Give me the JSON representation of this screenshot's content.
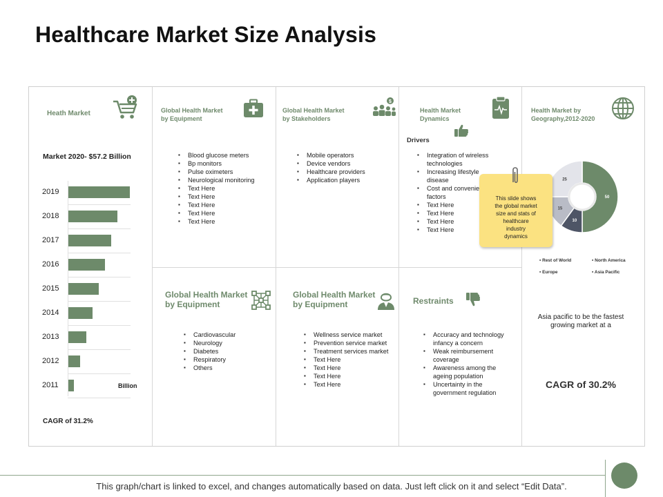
{
  "title": "Healthcare Market Size Analysis",
  "colors": {
    "accent": "#6d8a6a",
    "sticky": "#fbe281",
    "grid": "#d6d6d6"
  },
  "col1": {
    "heading": "Heath Market",
    "icon": "shopping-cart-plus-icon",
    "market_label": "Market 2020- $57.2 Billion",
    "unit_label": "Billion",
    "cagr": "CAGR of 31.2%"
  },
  "chart_data": {
    "type": "bar",
    "orientation": "horizontal",
    "title": "Market 2020- $57.2 Billion",
    "xlabel": "Billion",
    "categories": [
      "2019",
      "2018",
      "2017",
      "2016",
      "2015",
      "2014",
      "2013",
      "2012",
      "2011"
    ],
    "values": [
      10,
      8,
      7,
      6,
      5,
      4,
      3,
      2,
      1
    ],
    "xlim": [
      0,
      10
    ]
  },
  "top": {
    "c2": {
      "heading_l1": "Global Health Market",
      "heading_l2": "by Equipment",
      "icon": "first-aid-kit-icon",
      "items": [
        "Blood glucose meters",
        "Bp monitors",
        "Pulse oximeters",
        "Neurological monitoring",
        "Text Here",
        "Text Here",
        "Text Here",
        "Text Here",
        "Text Here"
      ]
    },
    "c3": {
      "heading_l1": "Global Health Market",
      "heading_l2": "by Stakeholders",
      "icon": "stakeholders-icon",
      "items": [
        "Mobile operators",
        "Device vendors",
        "Healthcare providers",
        "Application players"
      ]
    },
    "c4": {
      "heading_l1": "Health Market",
      "heading_l2": "Dynamics",
      "icon": "clipboard-pulse-icon",
      "drivers_label": "Drivers",
      "drivers_icon": "thumbs-up-icon",
      "items": [
        "Integration of wireless",
        "technologies",
        "Increasing lifestyle",
        "disease",
        "Cost and convenience",
        "factors",
        "Text Here",
        "Text Here",
        "Text Here",
        "Text Here"
      ]
    }
  },
  "bottom": {
    "c2": {
      "heading_l1": "Global  Health Market",
      "heading_l2": "by Equipment",
      "icon": "network-nodes-icon",
      "items": [
        "Cardiovascular",
        "Neurology",
        "Diabetes",
        "Respiratory",
        "Others"
      ]
    },
    "c3": {
      "heading_l1": "Global  Health Market",
      "heading_l2": "by Equipment",
      "icon": "doctor-icon",
      "items": [
        "Wellness service market",
        "Prevention service market",
        "Treatment services market",
        "Text Here",
        "Text Here",
        "Text Here",
        "Text Here"
      ]
    },
    "c4": {
      "heading": "Restraints",
      "icon": "thumbs-down-icon",
      "items": [
        "Accuracy and technology",
        "infancy a concern",
        "Weak reimbursement",
        "coverage",
        "Awareness among the",
        "ageing population",
        "Uncertainty in the",
        "government regulation"
      ]
    }
  },
  "geo": {
    "heading_l1": "Health Market by",
    "heading_l2": "Geography,2012-2020",
    "icon": "globe-icon",
    "pie": [
      {
        "label": "North America",
        "value": 50,
        "color": "#6d8a6a"
      },
      {
        "label": "Asia Pacific",
        "value": 10,
        "color": "#4e5566"
      },
      {
        "label": "Europe",
        "value": 15,
        "color": "#b9bcc6"
      },
      {
        "label": "Rest of World",
        "value": 25,
        "color": "#e3e4ea"
      }
    ],
    "legend": [
      "Rest of World",
      "North America",
      "Europe",
      "Asia Pacific"
    ],
    "note_l1": "Asia pacific to be the fastest",
    "note_l2": "growing market at a",
    "cagr": "CAGR of 30.2%"
  },
  "sticky_note": {
    "lines": [
      "This slide shows",
      "the global market",
      "size and stats of",
      "healthcare",
      "industry",
      "dynamics"
    ],
    "icon": "paperclip-icon"
  },
  "footer": {
    "text": "This graph/chart is linked to excel, and changes automatically based on data. Just left click on it and select “Edit Data”."
  }
}
